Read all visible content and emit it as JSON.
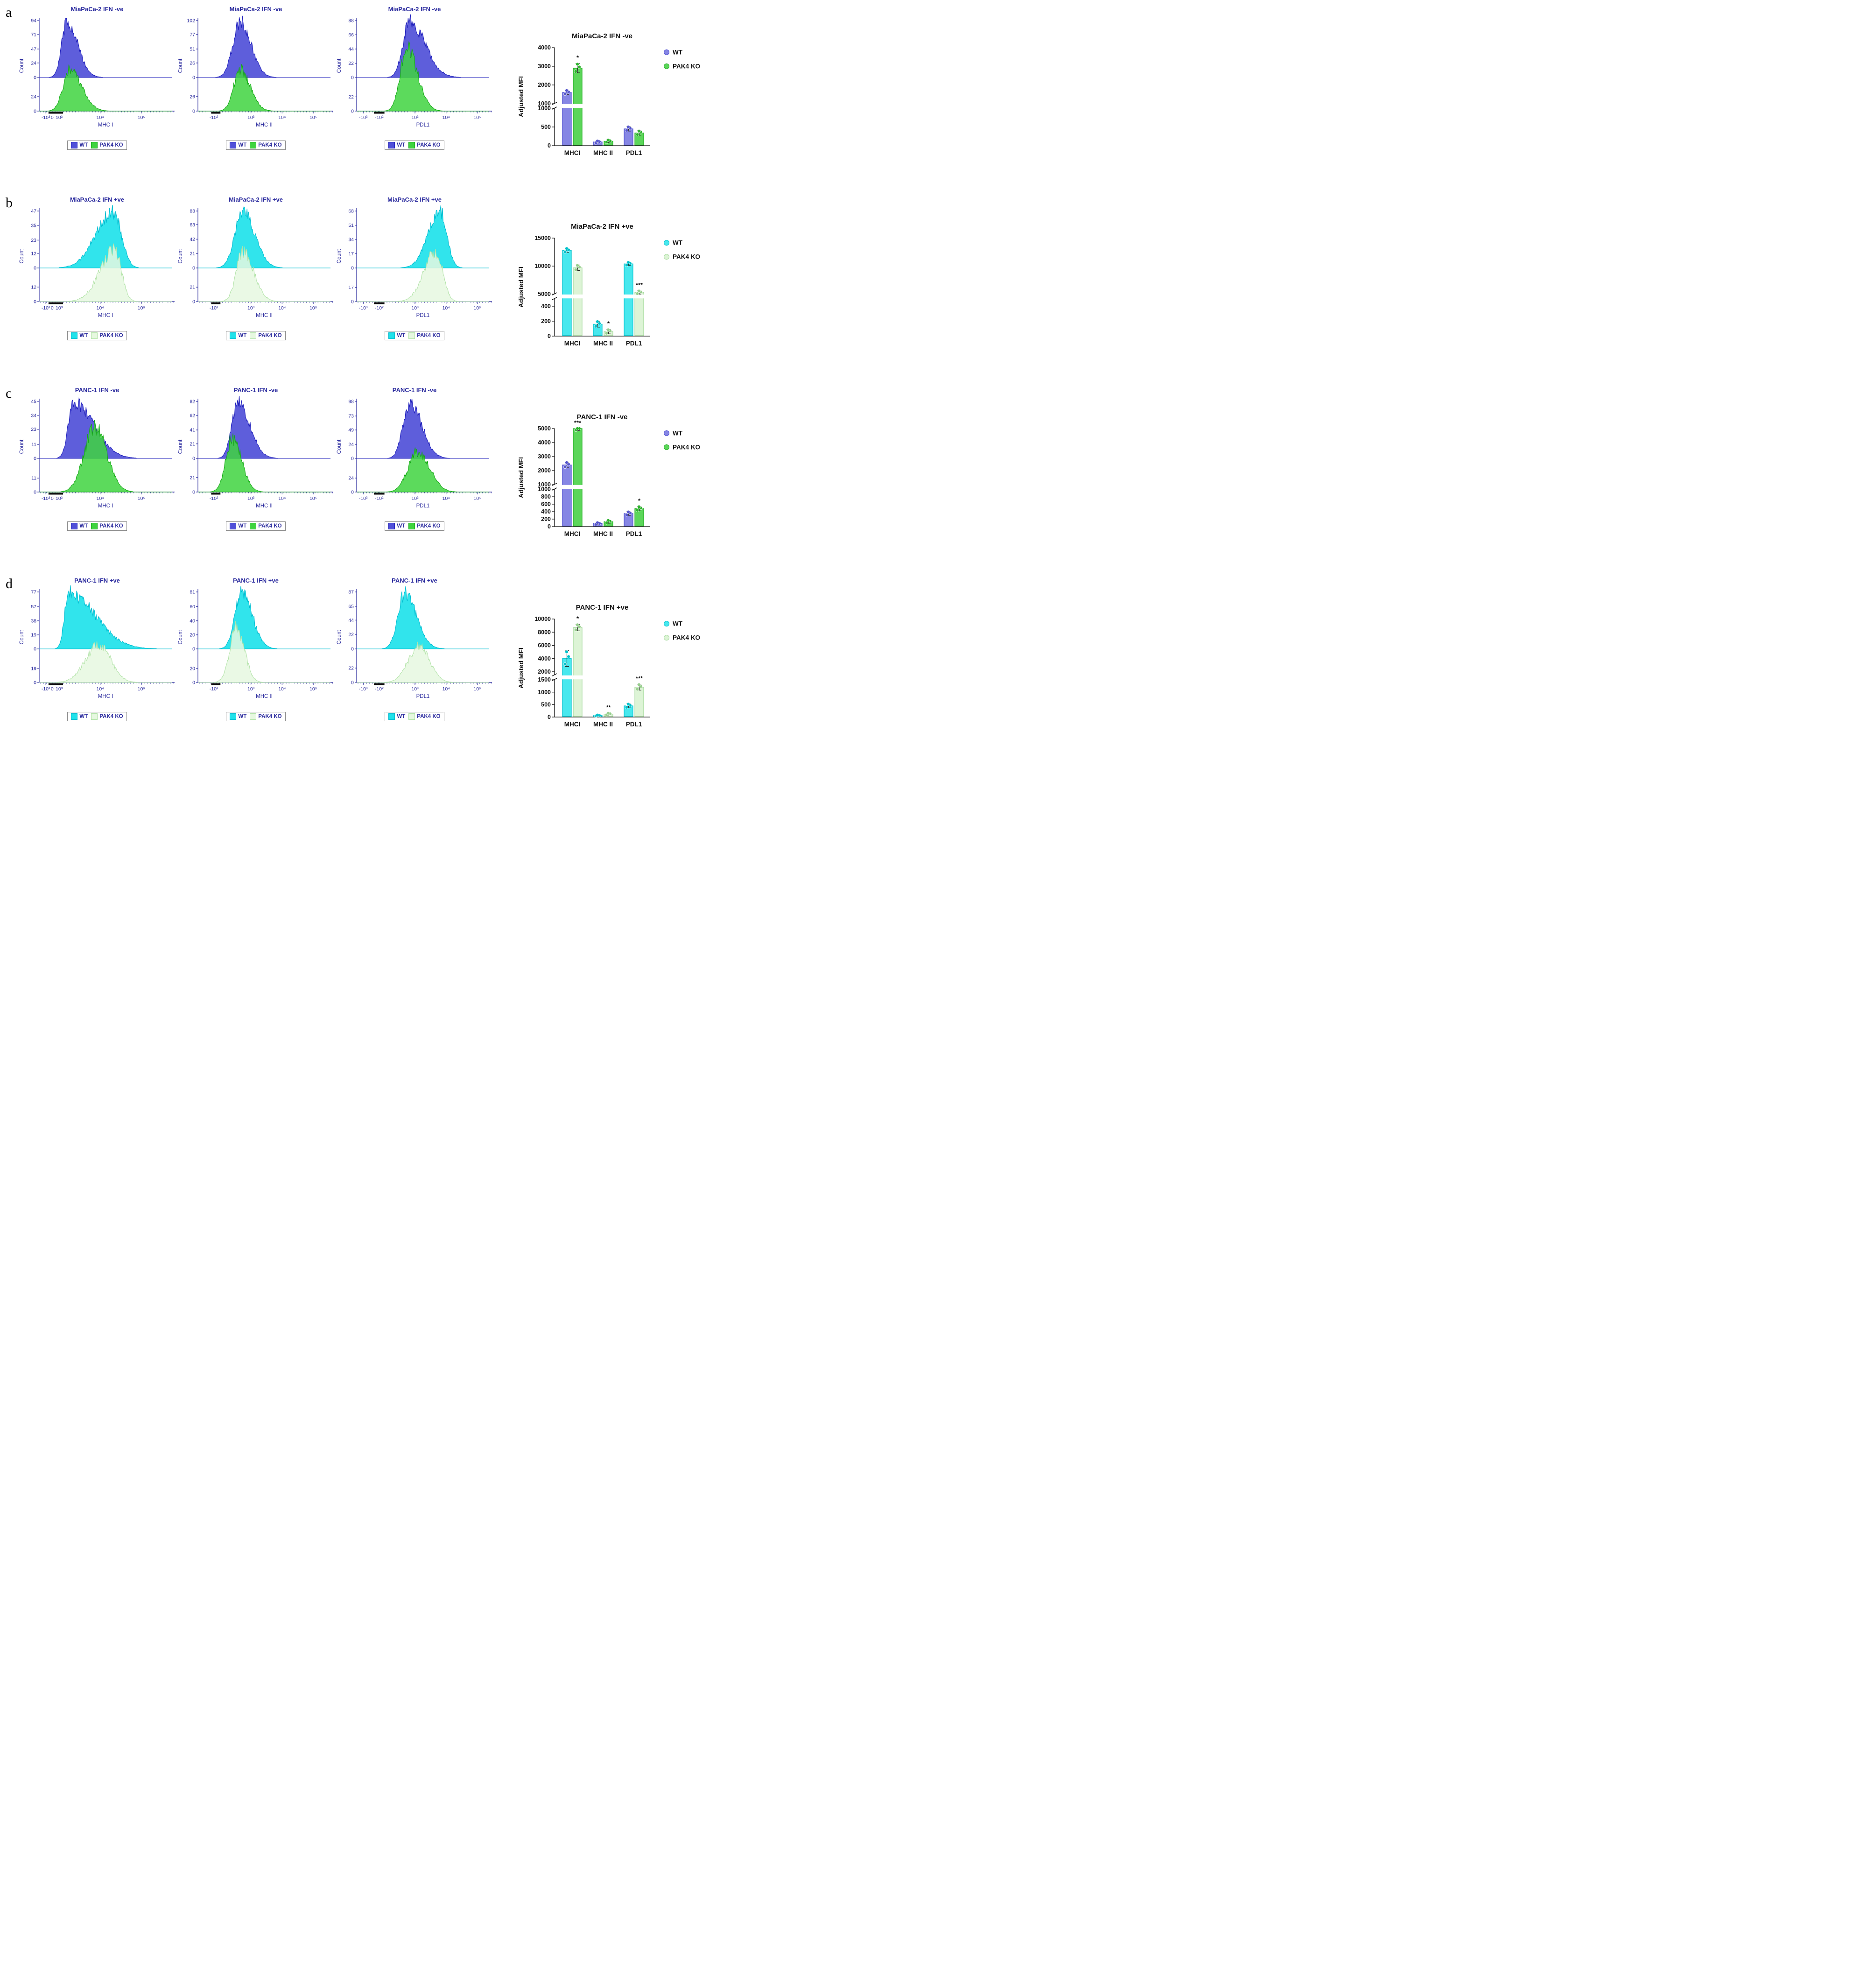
{
  "figure": {
    "panels": [
      "a",
      "b",
      "c",
      "d"
    ],
    "colors": {
      "axis": "#2b2b9e",
      "background": "#ffffff"
    }
  },
  "legend": {
    "wt_label": "WT",
    "ko_label": "PAK4 KO"
  },
  "chart_data": [
    {
      "panel": "a",
      "type": "flow-histogram",
      "title": "MiaPaCa-2 IFN -ve",
      "xlabel": "MHC I",
      "ylabel": "Count",
      "colors": {
        "wt_fill": "#5050d8",
        "wt_stroke": "#2020bb",
        "ko_fill": "#3fd33f",
        "ko_stroke": "#15a815"
      },
      "ymax": 94,
      "yticks_top": [
        94,
        71,
        47,
        24,
        0
      ],
      "yticks_bottom": [
        24,
        0
      ],
      "xticks": [
        {
          "label": "-10³",
          "f": 0.05
        },
        {
          "label": "0",
          "f": 0.098
        },
        {
          "label": "10³",
          "f": 0.15
        },
        {
          "label": "10⁴",
          "f": 0.46
        },
        {
          "label": "10⁵",
          "f": 0.77
        }
      ],
      "gate": [
        0.07,
        0.18
      ],
      "wt": {
        "p": 0.21,
        "wl": 0.04,
        "wr": 0.08,
        "h": 92
      },
      "ko": {
        "p": 0.23,
        "wl": 0.05,
        "wr": 0.09,
        "h": 68
      }
    },
    {
      "panel": "a",
      "type": "flow-histogram",
      "title": "MiaPaCa-2 IFN -ve",
      "xlabel": "MHC II",
      "ylabel": "Count",
      "colors": {
        "wt_fill": "#5050d8",
        "wt_stroke": "#2020bb",
        "ko_fill": "#3fd33f",
        "ko_stroke": "#15a815"
      },
      "ymax": 102,
      "yticks_top": [
        102,
        77,
        51,
        26,
        0
      ],
      "yticks_bottom": [
        26,
        0
      ],
      "xticks": [
        {
          "label": "-10²",
          "f": 0.12
        },
        {
          "label": "10³",
          "f": 0.4
        },
        {
          "label": "10⁴",
          "f": 0.635
        },
        {
          "label": "10⁵",
          "f": 0.87
        }
      ],
      "gate": [
        0.1,
        0.17
      ],
      "wt": {
        "p": 0.32,
        "wl": 0.055,
        "wr": 0.08,
        "h": 100
      },
      "ko": {
        "p": 0.32,
        "wl": 0.05,
        "wr": 0.075,
        "h": 74
      }
    },
    {
      "panel": "a",
      "type": "flow-histogram",
      "title": "MiaPaCa-2 IFN -ve",
      "xlabel": "PDL1",
      "ylabel": "Count",
      "colors": {
        "wt_fill": "#5050d8",
        "wt_stroke": "#2020bb",
        "ko_fill": "#3fd33f",
        "ko_stroke": "#15a815"
      },
      "ymax": 88,
      "yticks_top": [
        88,
        66,
        44,
        22,
        0
      ],
      "yticks_bottom": [
        22,
        0
      ],
      "xticks": [
        {
          "label": "-10³",
          "f": 0.05
        },
        {
          "label": "-10²",
          "f": 0.17
        },
        {
          "label": "10³",
          "f": 0.44
        },
        {
          "label": "10⁴",
          "f": 0.675
        },
        {
          "label": "10⁵",
          "f": 0.91
        }
      ],
      "gate": [
        0.13,
        0.21
      ],
      "wt": {
        "p": 0.4,
        "wl": 0.05,
        "wr": 0.115,
        "h": 86
      },
      "ko": {
        "p": 0.38,
        "wl": 0.05,
        "wr": 0.08,
        "h": 96
      }
    },
    {
      "panel": "a",
      "type": "bar",
      "title": "MiaPaCa-2 IFN -ve",
      "ylabel": "Adjusted MFI",
      "categories": [
        "MHCI",
        "MHC II",
        "PDL1"
      ],
      "series": [
        {
          "name": "WT",
          "fill": "#8686e4",
          "stroke": "#4a4ad0",
          "dot": "#5555cc",
          "values": [
            1600,
            100,
            450
          ],
          "err": [
            120,
            30,
            60
          ]
        },
        {
          "name": "PAK4 KO",
          "fill": "#5cd65a",
          "stroke": "#21ae21",
          "dot": "#2eb42e",
          "values": [
            2900,
            120,
            340
          ],
          "err": [
            250,
            35,
            60
          ]
        }
      ],
      "significance": [
        "*",
        "",
        ""
      ],
      "axis_break": {
        "lower_max": 1000,
        "lower_ticks": [
          0,
          500,
          1000
        ],
        "upper_min": 1000,
        "upper_max": 4000,
        "upper_ticks": [
          1000,
          2000,
          3000,
          4000
        ]
      }
    },
    {
      "panel": "b",
      "type": "flow-histogram",
      "title": "MiaPaCa-2 IFN +ve",
      "xlabel": "MHC I",
      "ylabel": "Count",
      "colors": {
        "wt_fill": "#20e2ea",
        "wt_stroke": "#00bcd0",
        "ko_fill": "#e6f8e0",
        "ko_stroke": "#b2e3a8"
      },
      "ymax": 47,
      "yticks_top": [
        47,
        35,
        23,
        12,
        0
      ],
      "yticks_bottom": [
        12,
        0
      ],
      "xticks": [
        {
          "label": "-10³",
          "f": 0.05
        },
        {
          "label": "0",
          "f": 0.098
        },
        {
          "label": "10³",
          "f": 0.15
        },
        {
          "label": "10⁴",
          "f": 0.46
        },
        {
          "label": "10⁵",
          "f": 0.77
        }
      ],
      "gate": [
        0.07,
        0.18
      ],
      "wt": {
        "p": 0.56,
        "wl": 0.13,
        "wr": 0.06,
        "h": 46
      },
      "ko": {
        "p": 0.57,
        "wl": 0.11,
        "wr": 0.05,
        "h": 43
      }
    },
    {
      "panel": "b",
      "type": "flow-histogram",
      "title": "MiaPaCa-2 IFN +ve",
      "xlabel": "MHC II",
      "ylabel": "Count",
      "colors": {
        "wt_fill": "#20e2ea",
        "wt_stroke": "#00bcd0",
        "ko_fill": "#e6f8e0",
        "ko_stroke": "#b2e3a8"
      },
      "ymax": 83,
      "yticks_top": [
        83,
        63,
        42,
        21,
        0
      ],
      "yticks_bottom": [
        21,
        0
      ],
      "xticks": [
        {
          "label": "-10²",
          "f": 0.12
        },
        {
          "label": "10³",
          "f": 0.4
        },
        {
          "label": "10⁴",
          "f": 0.635
        },
        {
          "label": "10⁵",
          "f": 0.87
        }
      ],
      "gate": [
        0.1,
        0.17
      ],
      "wt": {
        "p": 0.34,
        "wl": 0.06,
        "wr": 0.09,
        "h": 81
      },
      "ko": {
        "p": 0.34,
        "wl": 0.05,
        "wr": 0.08,
        "h": 73
      }
    },
    {
      "panel": "b",
      "type": "flow-histogram",
      "title": "MiaPaCa-2 IFN +ve",
      "xlabel": "PDL1",
      "ylabel": "Count",
      "colors": {
        "wt_fill": "#20e2ea",
        "wt_stroke": "#00bcd0",
        "ko_fill": "#e6f8e0",
        "ko_stroke": "#b2e3a8"
      },
      "ymax": 68,
      "yticks_top": [
        68,
        51,
        34,
        17,
        0
      ],
      "yticks_bottom": [
        17,
        0
      ],
      "xticks": [
        {
          "label": "-10³",
          "f": 0.05
        },
        {
          "label": "-10²",
          "f": 0.17
        },
        {
          "label": "10³",
          "f": 0.44
        },
        {
          "label": "10⁴",
          "f": 0.675
        },
        {
          "label": "10⁵",
          "f": 0.91
        }
      ],
      "gate": [
        0.13,
        0.21
      ],
      "wt": {
        "p": 0.63,
        "wl": 0.09,
        "wr": 0.05,
        "h": 67
      },
      "ko": {
        "p": 0.6,
        "wl": 0.09,
        "wr": 0.05,
        "h": 60
      }
    },
    {
      "panel": "b",
      "type": "bar",
      "title": "MiaPaCa-2 IFN +ve",
      "ylabel": "Adjusted MFI",
      "categories": [
        "MHCI",
        "MHC II",
        "PDL1"
      ],
      "series": [
        {
          "name": "WT",
          "fill": "#48e8ee",
          "stroke": "#00c2cc",
          "dot": "#00c2cc",
          "values": [
            12800,
            160,
            10400
          ],
          "err": [
            400,
            40,
            300
          ]
        },
        {
          "name": "PAK4 KO",
          "fill": "#ddf4d6",
          "stroke": "#a5d99c",
          "dot": "#98cf8e",
          "values": [
            9700,
            60,
            5300
          ],
          "err": [
            500,
            30,
            300
          ]
        }
      ],
      "significance": [
        "",
        "*",
        "***"
      ],
      "axis_break": {
        "lower_max": 500,
        "lower_ticks": [
          0,
          200,
          400
        ],
        "upper_min": 5000,
        "upper_max": 15000,
        "upper_ticks": [
          5000,
          10000,
          15000
        ]
      }
    },
    {
      "panel": "c",
      "type": "flow-histogram",
      "title": "PANC-1 IFN -ve",
      "xlabel": "MHC I",
      "ylabel": "Count",
      "colors": {
        "wt_fill": "#5050d8",
        "wt_stroke": "#2020bb",
        "ko_fill": "#3fd33f",
        "ko_stroke": "#15a815"
      },
      "ymax": 45,
      "yticks_top": [
        45,
        34,
        23,
        11,
        0
      ],
      "yticks_bottom": [
        11,
        0
      ],
      "xticks": [
        {
          "label": "-10³",
          "f": 0.05
        },
        {
          "label": "0",
          "f": 0.098
        },
        {
          "label": "10³",
          "f": 0.15
        },
        {
          "label": "10⁴",
          "f": 0.46
        },
        {
          "label": "10⁵",
          "f": 0.77
        }
      ],
      "gate": [
        0.07,
        0.18
      ],
      "wt": {
        "p": 0.26,
        "wl": 0.04,
        "wr": 0.15,
        "h": 44
      },
      "ko": {
        "p": 0.42,
        "wl": 0.08,
        "wr": 0.09,
        "h": 51
      }
    },
    {
      "panel": "c",
      "type": "flow-histogram",
      "title": "PANC-1 IFN -ve",
      "xlabel": "MHC II",
      "ylabel": "Count",
      "colors": {
        "wt_fill": "#5050d8",
        "wt_stroke": "#2020bb",
        "ko_fill": "#3fd33f",
        "ko_stroke": "#15a815"
      },
      "ymax": 82,
      "yticks_top": [
        82,
        62,
        41,
        21,
        0
      ],
      "yticks_bottom": [
        21,
        0
      ],
      "xticks": [
        {
          "label": "-10²",
          "f": 0.12
        },
        {
          "label": "10³",
          "f": 0.4
        },
        {
          "label": "10⁴",
          "f": 0.635
        },
        {
          "label": "10⁵",
          "f": 0.87
        }
      ],
      "gate": [
        0.1,
        0.17
      ],
      "wt": {
        "p": 0.3,
        "wl": 0.045,
        "wr": 0.09,
        "h": 80
      },
      "ko": {
        "p": 0.26,
        "wl": 0.05,
        "wr": 0.07,
        "h": 78
      }
    },
    {
      "panel": "c",
      "type": "flow-histogram",
      "title": "PANC-1 IFN -ve",
      "xlabel": "PDL1",
      "ylabel": "Count",
      "colors": {
        "wt_fill": "#5050d8",
        "wt_stroke": "#2020bb",
        "ko_fill": "#3fd33f",
        "ko_stroke": "#15a815"
      },
      "ymax": 98,
      "yticks_top": [
        98,
        73,
        49,
        24,
        0
      ],
      "yticks_bottom": [
        24,
        0
      ],
      "xticks": [
        {
          "label": "-10³",
          "f": 0.05
        },
        {
          "label": "-10²",
          "f": 0.17
        },
        {
          "label": "10³",
          "f": 0.44
        },
        {
          "label": "10⁴",
          "f": 0.675
        },
        {
          "label": "10⁵",
          "f": 0.91
        }
      ],
      "gate": [
        0.13,
        0.21
      ],
      "wt": {
        "p": 0.4,
        "wl": 0.05,
        "wr": 0.09,
        "h": 96
      },
      "ko": {
        "p": 0.46,
        "wl": 0.07,
        "wr": 0.09,
        "h": 70
      }
    },
    {
      "panel": "c",
      "type": "bar",
      "title": "PANC-1 IFN -ve",
      "ylabel": "Adjusted MFI",
      "categories": [
        "MHCI",
        "MHC II",
        "PDL1"
      ],
      "series": [
        {
          "name": "WT",
          "fill": "#8686e4",
          "stroke": "#4a4ad0",
          "dot": "#5555cc",
          "values": [
            2400,
            80,
            350
          ],
          "err": [
            200,
            30,
            50
          ]
        },
        {
          "name": "PAK4 KO",
          "fill": "#5cd65a",
          "stroke": "#21ae21",
          "dot": "#2eb42e",
          "values": [
            5000,
            130,
            480
          ],
          "err": [
            150,
            40,
            60
          ]
        }
      ],
      "significance": [
        "***",
        "",
        "*"
      ],
      "axis_break": {
        "lower_max": 1000,
        "lower_ticks": [
          0,
          200,
          400,
          600,
          800,
          1000
        ],
        "upper_min": 1000,
        "upper_max": 5000,
        "upper_ticks": [
          1000,
          2000,
          3000,
          4000,
          5000
        ]
      }
    },
    {
      "panel": "d",
      "type": "flow-histogram",
      "title": "PANC-1 IFN +ve",
      "xlabel": "MHC I",
      "ylabel": "Count",
      "colors": {
        "wt_fill": "#20e2ea",
        "wt_stroke": "#00bcd0",
        "ko_fill": "#e6f8e0",
        "ko_stroke": "#b2e3a8"
      },
      "ymax": 77,
      "yticks_top": [
        77,
        57,
        38,
        19,
        0
      ],
      "yticks_bottom": [
        19,
        0
      ],
      "xticks": [
        {
          "label": "-10³",
          "f": 0.05
        },
        {
          "label": "0",
          "f": 0.098
        },
        {
          "label": "10³",
          "f": 0.15
        },
        {
          "label": "10⁴",
          "f": 0.46
        },
        {
          "label": "10⁵",
          "f": 0.77
        }
      ],
      "gate": [
        0.07,
        0.18
      ],
      "wt": {
        "p": 0.22,
        "wl": 0.03,
        "wr": 0.2,
        "h": 76
      },
      "ko": {
        "p": 0.45,
        "wl": 0.1,
        "wr": 0.09,
        "h": 51
      }
    },
    {
      "panel": "d",
      "type": "flow-histogram",
      "title": "PANC-1 IFN +ve",
      "xlabel": "MHC II",
      "ylabel": "Count",
      "colors": {
        "wt_fill": "#20e2ea",
        "wt_stroke": "#00bcd0",
        "ko_fill": "#e6f8e0",
        "ko_stroke": "#b2e3a8"
      },
      "ymax": 81,
      "yticks_top": [
        81,
        60,
        40,
        20,
        0
      ],
      "yticks_bottom": [
        20,
        0
      ],
      "xticks": [
        {
          "label": "-10²",
          "f": 0.12
        },
        {
          "label": "10³",
          "f": 0.4
        },
        {
          "label": "10⁴",
          "f": 0.635
        },
        {
          "label": "10⁵",
          "f": 0.87
        }
      ],
      "gate": [
        0.1,
        0.17
      ],
      "wt": {
        "p": 0.33,
        "wl": 0.05,
        "wr": 0.08,
        "h": 80
      },
      "ko": {
        "p": 0.29,
        "wl": 0.05,
        "wr": 0.06,
        "h": 78
      }
    },
    {
      "panel": "d",
      "type": "flow-histogram",
      "title": "PANC-1 IFN +ve",
      "xlabel": "PDL1",
      "ylabel": "Count",
      "colors": {
        "wt_fill": "#20e2ea",
        "wt_stroke": "#00bcd0",
        "ko_fill": "#e6f8e0",
        "ko_stroke": "#b2e3a8"
      },
      "ymax": 87,
      "yticks_top": [
        87,
        65,
        44,
        22,
        0
      ],
      "yticks_bottom": [
        22,
        0
      ],
      "xticks": [
        {
          "label": "-10³",
          "f": 0.05
        },
        {
          "label": "-10²",
          "f": 0.17
        },
        {
          "label": "10³",
          "f": 0.44
        },
        {
          "label": "10⁴",
          "f": 0.675
        },
        {
          "label": "10⁵",
          "f": 0.91
        }
      ],
      "gate": [
        0.13,
        0.21
      ],
      "wt": {
        "p": 0.36,
        "wl": 0.05,
        "wr": 0.09,
        "h": 85
      },
      "ko": {
        "p": 0.47,
        "wl": 0.08,
        "wr": 0.08,
        "h": 56
      }
    },
    {
      "panel": "d",
      "type": "bar",
      "title": "PANC-1 IFN +ve",
      "ylabel": "Adjusted MFI",
      "categories": [
        "MHCI",
        "MHC II",
        "PDL1"
      ],
      "series": [
        {
          "name": "WT",
          "fill": "#48e8ee",
          "stroke": "#00c2cc",
          "dot": "#00c2cc",
          "values": [
            4000,
            60,
            450
          ],
          "err": [
            1200,
            25,
            80
          ]
        },
        {
          "name": "PAK4 KO",
          "fill": "#ddf4d6",
          "stroke": "#a5d99c",
          "dot": "#98cf8e",
          "values": [
            8700,
            120,
            1200
          ],
          "err": [
            500,
            40,
            120
          ]
        }
      ],
      "significance": [
        "*",
        "**",
        "***"
      ],
      "axis_break": {
        "lower_max": 1500,
        "lower_ticks": [
          0,
          500,
          1000,
          1500
        ],
        "upper_min": 1500,
        "upper_max": 10000,
        "upper_ticks": [
          2000,
          4000,
          6000,
          8000,
          10000
        ]
      }
    }
  ]
}
